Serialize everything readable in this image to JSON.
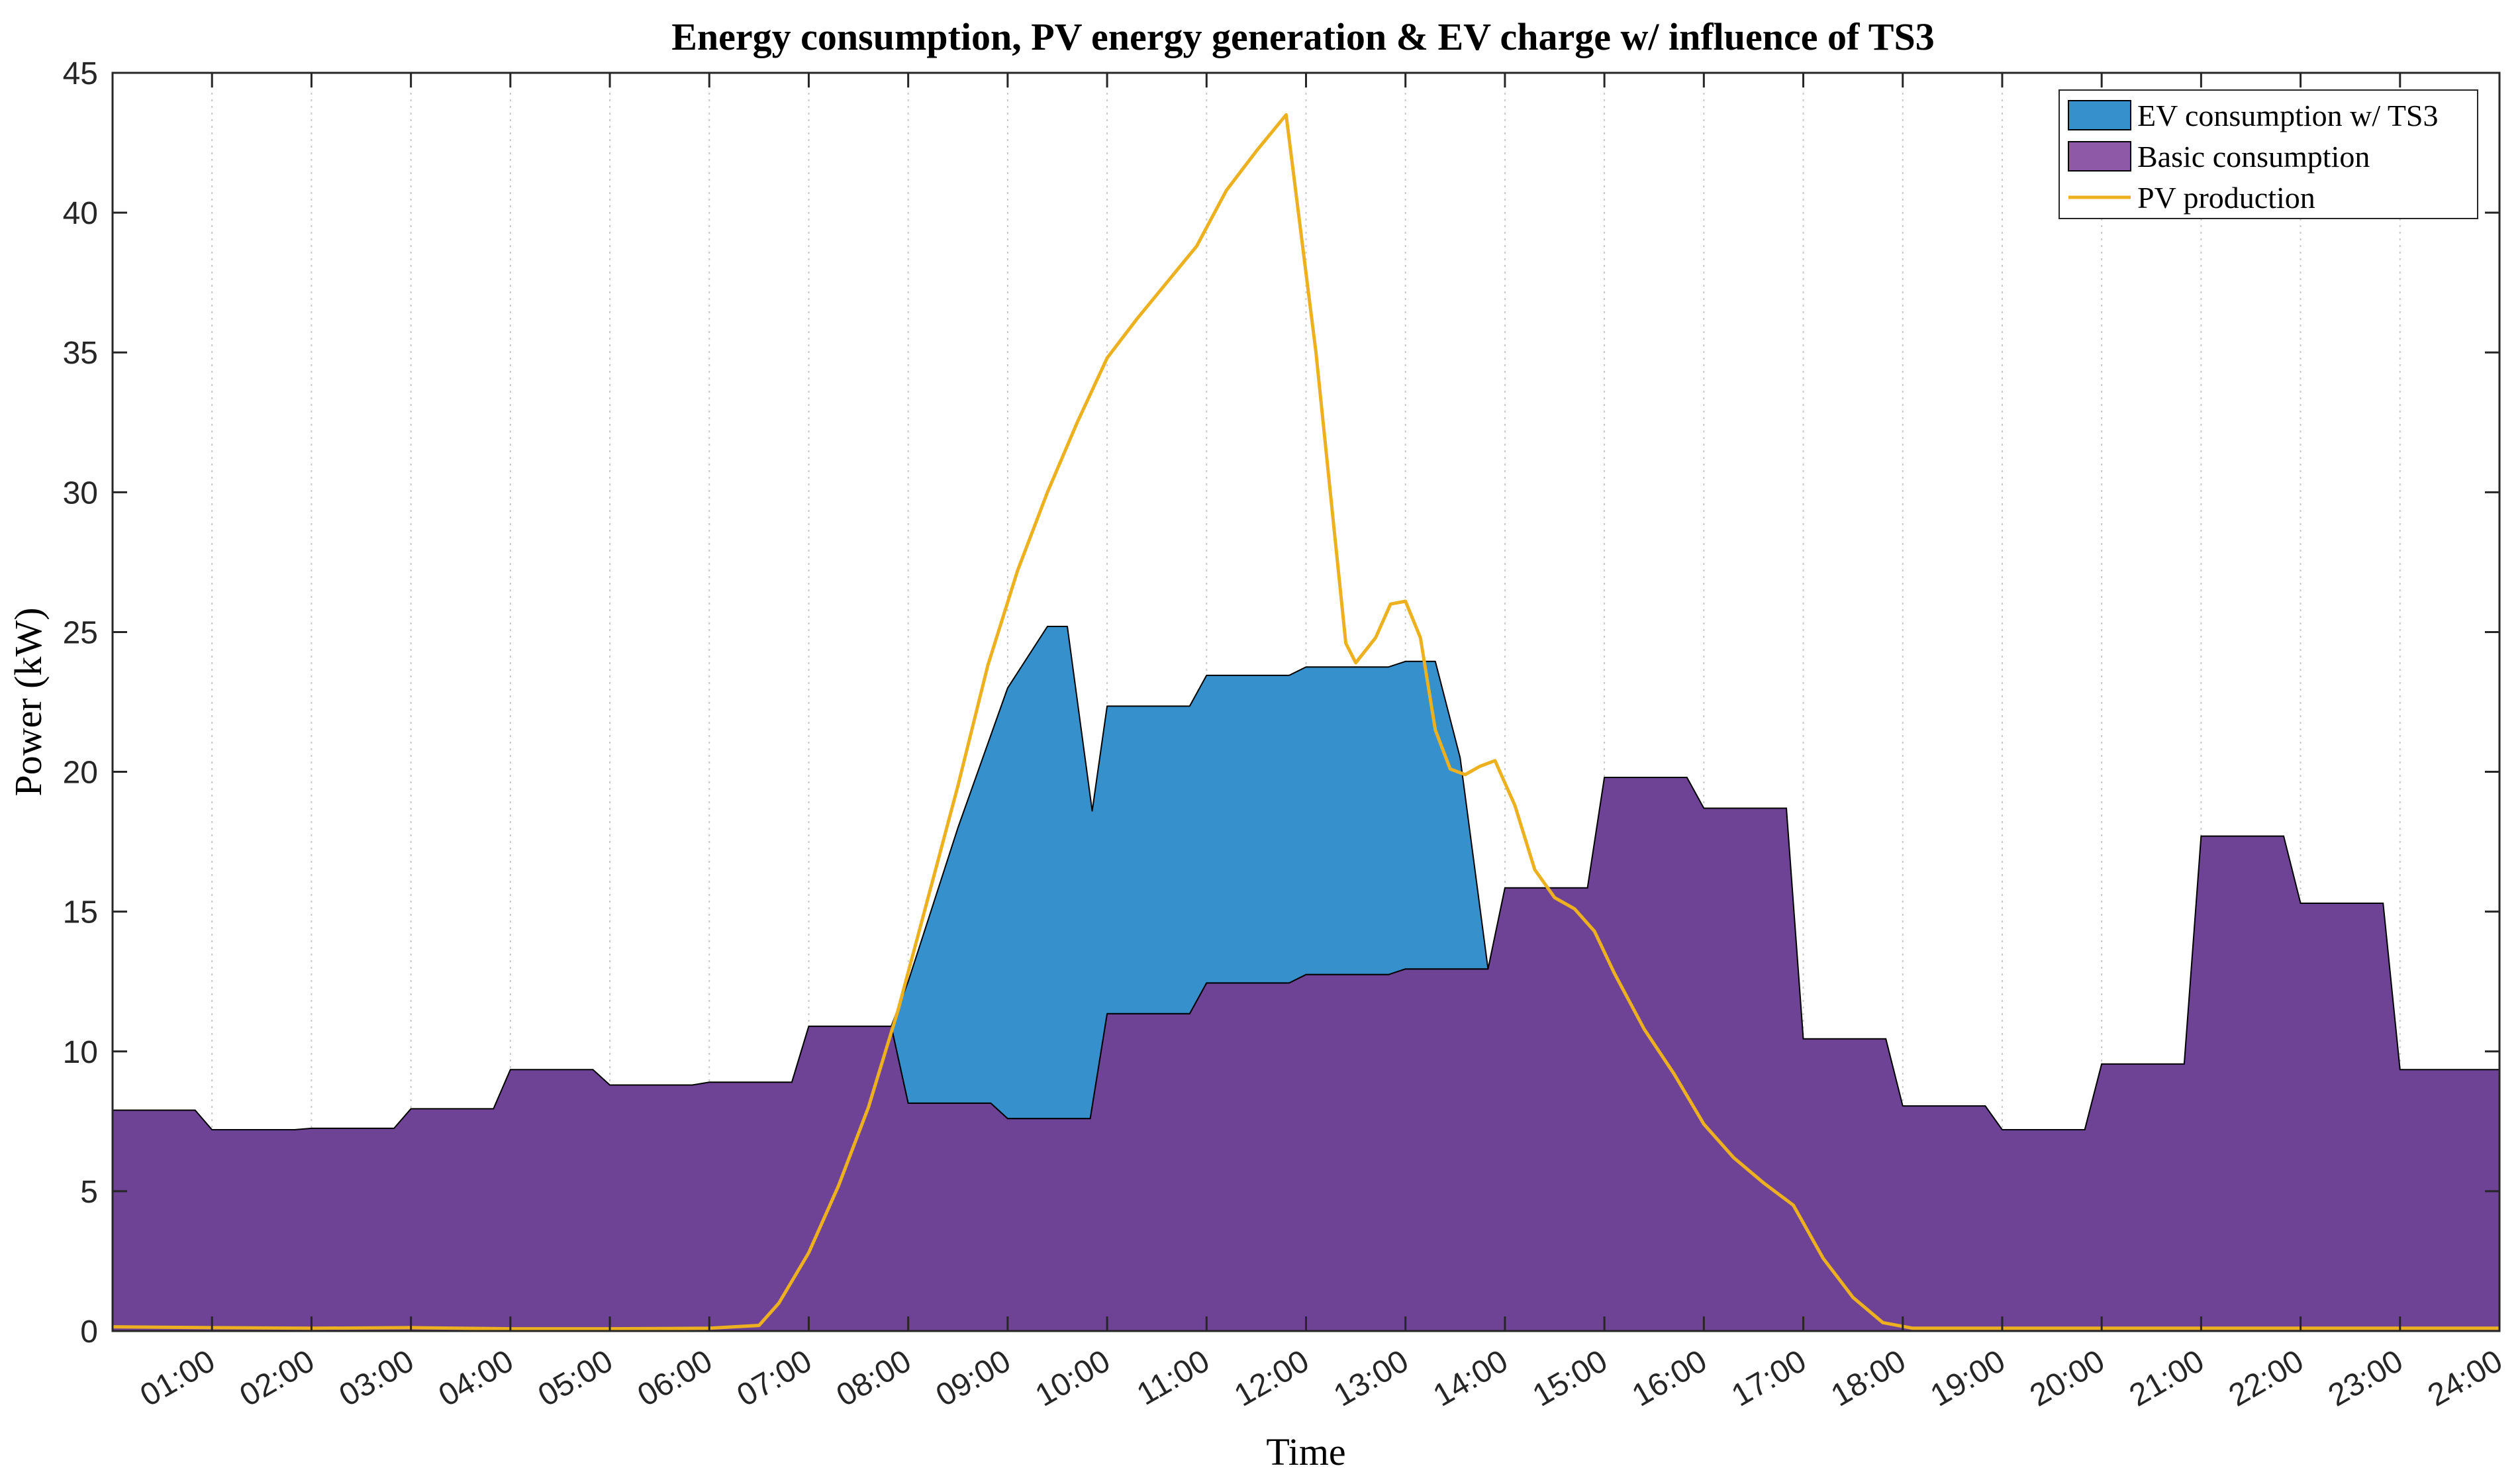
{
  "chart_data": {
    "type": "area",
    "title": "Energy consumption, PV energy generation & EV charge w/ influence of TS3",
    "xlabel": "Time",
    "ylabel": "Power (kW)",
    "xlim": [
      0.0,
      24.0
    ],
    "ylim": [
      0,
      45
    ],
    "yticks": [
      0,
      5,
      10,
      15,
      20,
      25,
      30,
      35,
      40,
      45
    ],
    "xticks": [
      1,
      2,
      3,
      4,
      5,
      6,
      7,
      8,
      9,
      10,
      11,
      12,
      13,
      14,
      15,
      16,
      17,
      18,
      19,
      20,
      21,
      22,
      23,
      24
    ],
    "xtick_labels": [
      "01:00",
      "02:00",
      "03:00",
      "04:00",
      "05:00",
      "06:00",
      "07:00",
      "08:00",
      "09:00",
      "10:00",
      "11:00",
      "12:00",
      "13:00",
      "14:00",
      "15:00",
      "16:00",
      "17:00",
      "18:00",
      "19:00",
      "20:00",
      "21:00",
      "22:00",
      "23:00",
      "24:00"
    ],
    "grid": "x-dotted",
    "legend_position": "top-right",
    "colors": {
      "ev": "#3690CC",
      "basic": "#6E4295",
      "basic_legend": "#8E5AA8",
      "pv": "#EDB120",
      "edge": "#000000"
    },
    "series": [
      {
        "name": "Basic consumption",
        "kind": "area",
        "x": [
          0.0,
          0.83,
          1.0,
          1.83,
          2.0,
          2.83,
          3.0,
          3.83,
          4.0,
          4.83,
          5.0,
          5.83,
          6.0,
          6.83,
          7.0,
          7.83,
          8.0,
          8.83,
          9.0,
          9.83,
          10.0,
          10.83,
          11.0,
          11.83,
          12.0,
          12.83,
          13.0,
          13.83,
          14.0,
          14.83,
          15.0,
          15.83,
          16.0,
          16.83,
          17.0,
          17.83,
          18.0,
          18.83,
          19.0,
          19.83,
          20.0,
          20.83,
          21.0,
          21.83,
          22.0,
          22.83,
          23.0,
          24.0
        ],
        "values": [
          7.9,
          7.9,
          7.2,
          7.2,
          7.25,
          7.25,
          7.95,
          7.95,
          9.35,
          9.35,
          8.8,
          8.8,
          8.9,
          8.9,
          10.9,
          10.9,
          8.15,
          8.15,
          7.6,
          7.6,
          11.35,
          11.35,
          12.45,
          12.45,
          12.75,
          12.75,
          12.95,
          12.95,
          15.85,
          15.85,
          19.8,
          19.8,
          18.7,
          18.7,
          10.45,
          10.45,
          8.05,
          8.05,
          7.2,
          7.2,
          9.55,
          9.55,
          17.7,
          17.7,
          15.3,
          15.3,
          9.35,
          9.35
        ]
      },
      {
        "name": "EV consumption w/ TS3",
        "kind": "stacked-area-top",
        "x": [
          7.83,
          8.0,
          8.5,
          9.0,
          9.4,
          9.6,
          9.85,
          10.0,
          10.83,
          11.0,
          11.83,
          12.0,
          12.83,
          13.0,
          13.3,
          13.55,
          13.83
        ],
        "values": [
          10.9,
          12.5,
          18.0,
          23.0,
          25.2,
          25.2,
          18.6,
          22.35,
          22.35,
          23.45,
          23.45,
          23.75,
          23.75,
          23.95,
          23.95,
          20.5,
          12.95
        ]
      },
      {
        "name": "PV production",
        "kind": "line",
        "x": [
          0.0,
          1.0,
          2.0,
          3.0,
          4.0,
          5.0,
          6.0,
          6.5,
          6.7,
          7.0,
          7.3,
          7.6,
          7.9,
          8.2,
          8.5,
          8.8,
          9.1,
          9.4,
          9.7,
          10.0,
          10.3,
          10.6,
          10.9,
          11.2,
          11.5,
          11.8,
          12.1,
          12.4,
          12.5,
          12.7,
          12.85,
          13.0,
          13.15,
          13.3,
          13.45,
          13.6,
          13.75,
          13.9,
          14.1,
          14.3,
          14.5,
          14.7,
          14.9,
          15.1,
          15.4,
          15.7,
          16.0,
          16.3,
          16.6,
          16.9,
          17.2,
          17.5,
          17.8,
          18.1,
          18.4,
          18.6,
          18.8,
          19.0,
          20.0,
          21.0,
          22.0,
          23.0,
          24.0
        ],
        "values": [
          0.15,
          0.12,
          0.1,
          0.12,
          0.08,
          0.08,
          0.1,
          0.2,
          1.0,
          2.8,
          5.2,
          8.0,
          11.5,
          15.5,
          19.5,
          23.8,
          27.2,
          30.0,
          32.5,
          34.8,
          36.2,
          37.5,
          38.8,
          40.8,
          42.2,
          43.5,
          35.0,
          24.6,
          23.9,
          24.8,
          26.0,
          26.1,
          24.8,
          21.5,
          20.1,
          19.9,
          20.2,
          20.4,
          18.8,
          16.5,
          15.5,
          15.1,
          14.3,
          12.8,
          10.8,
          9.2,
          7.4,
          6.2,
          5.3,
          4.5,
          2.6,
          1.2,
          0.3,
          0.1,
          0.1,
          0.1,
          0.1,
          0.1,
          0.1,
          0.1,
          0.1,
          0.1,
          0.1
        ]
      }
    ],
    "legend": [
      {
        "label": "EV consumption w/ TS3",
        "swatch": "box",
        "color": "#3690CC"
      },
      {
        "label": "Basic consumption",
        "swatch": "box",
        "color": "#8E5AA8"
      },
      {
        "label": "PV production",
        "swatch": "line",
        "color": "#EDB120"
      }
    ]
  }
}
